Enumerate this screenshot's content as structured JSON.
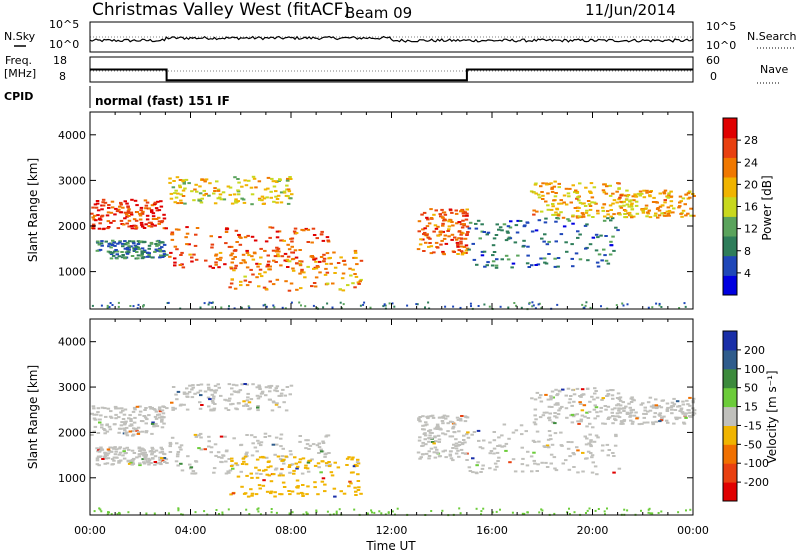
{
  "header": {
    "station": "Christmas Valley West (fitACF)",
    "beam": "Beam 09",
    "date": "11/Jun/2014"
  },
  "labels": {
    "nsky": "N.Sky",
    "nsearch": "N.Search",
    "freq": "Freq.",
    "freq_unit": "[MHz]",
    "nave": "Nave",
    "cpid": "CPID",
    "cpid_value": "normal (fast) 151 IF",
    "xlabel": "Time UT"
  },
  "noise_panel": {
    "left_ticks": [
      "10^5",
      "10^0"
    ],
    "right_ticks": [
      "10^5",
      "10^0"
    ]
  },
  "freq_panel": {
    "left_ticks": [
      "18",
      "8"
    ],
    "right_ticks": [
      "60",
      "0"
    ],
    "freq_steps": [
      {
        "t": 0,
        "f": 13.0
      },
      {
        "t": 3.05,
        "f": 13.0
      },
      {
        "t": 3.05,
        "f": 8.7
      },
      {
        "t": 15.0,
        "f": 8.7
      },
      {
        "t": 15.0,
        "f": 13.0
      },
      {
        "t": 24,
        "f": 13.0
      }
    ]
  },
  "x_ticks": [
    "00:00",
    "04:00",
    "08:00",
    "12:00",
    "16:00",
    "20:00",
    "00:00"
  ],
  "y_ticks": [
    "1000",
    "2000",
    "3000",
    "4000"
  ],
  "power_panel": {
    "ylabel": "Slant Range [km]",
    "cbar_label": "Power [dB]",
    "cbar_ticks": [
      "4",
      "8",
      "12",
      "16",
      "20",
      "24",
      "28"
    ],
    "cbar_colors": [
      "#0000e0",
      "#1f47b8",
      "#2e7d5a",
      "#5aa35c",
      "#c8d81e",
      "#f0b400",
      "#f07800",
      "#e84010",
      "#e00000"
    ]
  },
  "velocity_panel": {
    "ylabel": "Slant Range [km]",
    "cbar_label": "Velocity [m s⁻¹]",
    "cbar_ticks": [
      "200",
      "100",
      "50",
      "15",
      "-15",
      "-50",
      "-100",
      "-200"
    ],
    "cbar_colors": [
      "#1a2fa8",
      "#2f5c8c",
      "#3c8a3c",
      "#6ccc3a",
      "#c0c0bc",
      "#f0b400",
      "#f07000",
      "#e84010",
      "#e00000"
    ]
  },
  "chart_data": {
    "type": "heatmap",
    "x_range_hours": [
      0,
      24
    ],
    "y_range_km": [
      180,
      4500
    ],
    "echo_regions": [
      {
        "name": "A",
        "t0": 0.0,
        "t1": 3.0,
        "r0": 1950,
        "r1": 2600,
        "power": 27,
        "vel": "-15..15"
      },
      {
        "name": "B",
        "t0": 0.2,
        "t1": 3.0,
        "r0": 1300,
        "r1": 1700,
        "power": 9,
        "vel": "-15..15"
      },
      {
        "name": "C",
        "t0": 3.1,
        "t1": 9.5,
        "r0": 1100,
        "r1": 2000,
        "power": 26,
        "vel": "-15..15"
      },
      {
        "name": "D",
        "t0": 5.5,
        "t1": 10.8,
        "r0": 600,
        "r1": 1500,
        "power": 22,
        "vel": "-50..-15"
      },
      {
        "name": "E",
        "t0": 3.1,
        "t1": 8.0,
        "r0": 2500,
        "r1": 3100,
        "power": 18,
        "vel": "-15..15"
      },
      {
        "name": "F",
        "t0": 13.0,
        "t1": 15.0,
        "r0": 1400,
        "r1": 2400,
        "power": 24,
        "vel": "-15..15"
      },
      {
        "name": "G",
        "t0": 15.0,
        "t1": 21.0,
        "r0": 1100,
        "r1": 2200,
        "power": 8,
        "vel": "-15..15"
      },
      {
        "name": "H",
        "t0": 17.5,
        "t1": 21.0,
        "r0": 2200,
        "r1": 3000,
        "power": 20,
        "vel": "-15..15"
      },
      {
        "name": "I",
        "t0": 21.0,
        "t1": 24.0,
        "r0": 2200,
        "r1": 2800,
        "power": 20,
        "vel": "-15..15"
      }
    ]
  }
}
